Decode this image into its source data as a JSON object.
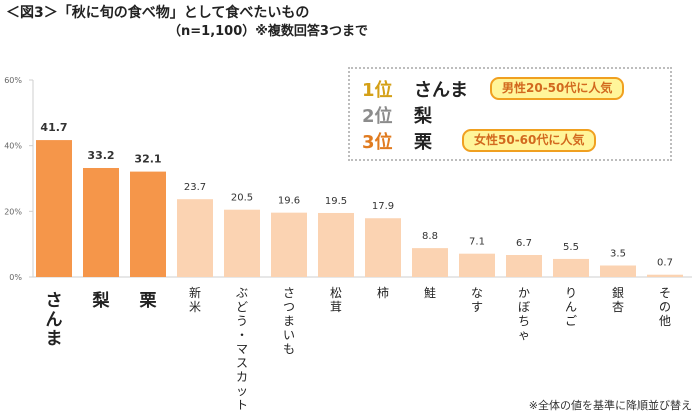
{
  "heading": {
    "title": "＜図3＞「秋に旬の食べ物」として食べたいもの",
    "subtitle": "（n=1,100）※複数回答3つまで"
  },
  "ranking": [
    {
      "rank": "1位",
      "item": "さんま",
      "color": "#d4a017"
    },
    {
      "rank": "2位",
      "item": "梨",
      "color": "#8c8c8c"
    },
    {
      "rank": "3位",
      "item": "栗",
      "color": "#e07b20"
    }
  ],
  "callouts": {
    "first": "男性20-50代に人気",
    "third": "女性50-60代に人気"
  },
  "footnote": "※全体の値を基準に降順並び替え",
  "colors": {
    "top_bar": "#f5964a",
    "other_bar": "#fbd3b2",
    "axis": "#cfcfcf"
  },
  "chart_data": {
    "type": "bar",
    "categories": [
      "さんま",
      "梨",
      "栗",
      "新米",
      "ぶどう・マスカット",
      "さつまいも",
      "松茸",
      "柿",
      "鮭",
      "なす",
      "かぼちゃ",
      "りんご",
      "銀杏",
      "その他"
    ],
    "values": [
      41.7,
      33.2,
      32.1,
      23.7,
      20.5,
      19.6,
      19.5,
      17.9,
      8.8,
      7.1,
      6.7,
      5.5,
      3.5,
      0.7
    ],
    "highlight_count": 3,
    "yticks": [
      "0%",
      "20%",
      "40%",
      "60%"
    ],
    "ylim": [
      0,
      60
    ],
    "grid": false
  }
}
